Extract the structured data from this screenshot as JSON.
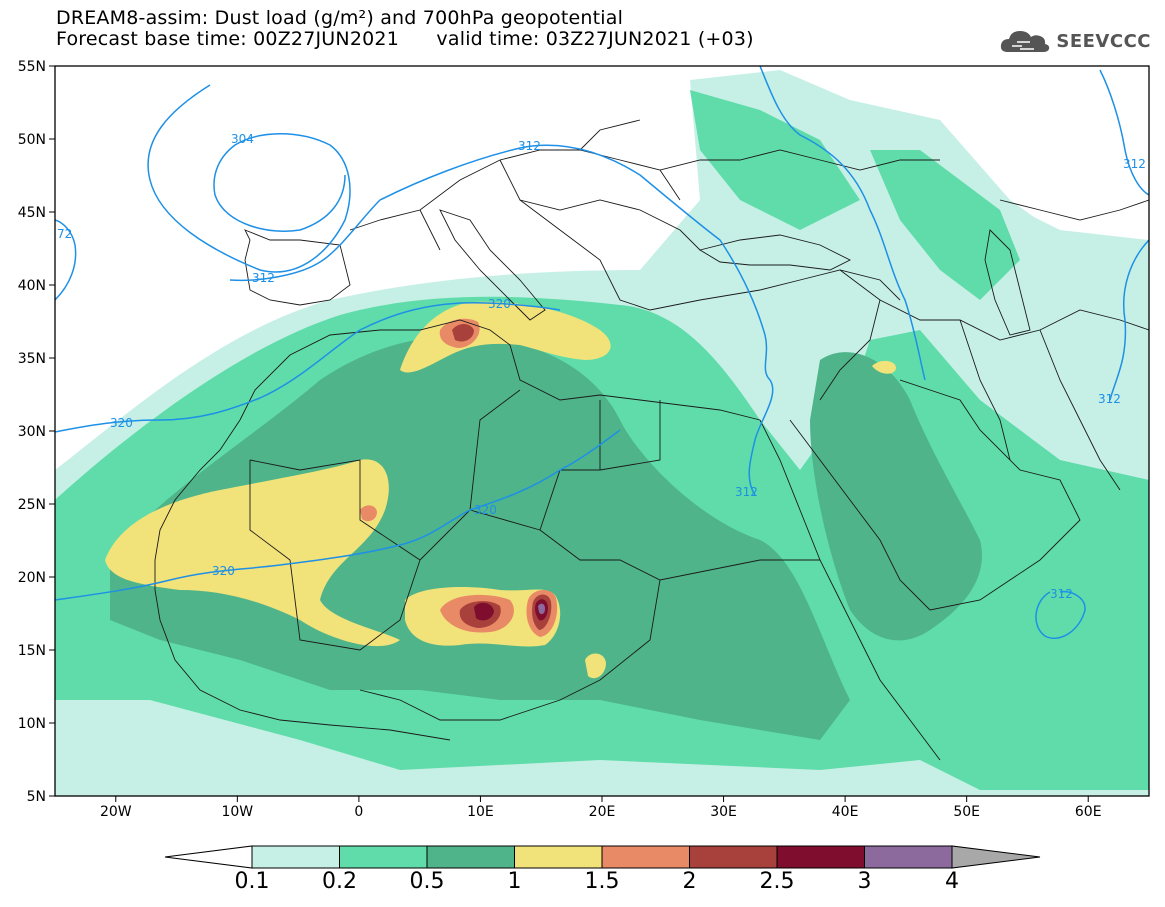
{
  "header": {
    "line1": "DREAM8-assim: Dust load (g/m²) and 700hPa geopotential",
    "base_label": "Forecast base time: 00Z27JUN2021",
    "valid_label": "valid time: 03Z27JUN2021 (+03)"
  },
  "logo": {
    "text": "SEEVCCC",
    "icon": "cloud-icon"
  },
  "map": {
    "lat_ticks": [
      "55N",
      "50N",
      "45N",
      "40N",
      "35N",
      "30N",
      "25N",
      "20N",
      "15N",
      "10N",
      "5N"
    ],
    "lon_ticks": [
      "20W",
      "10W",
      "0",
      "10E",
      "20E",
      "30E",
      "40E",
      "50E",
      "60E"
    ],
    "contour_labels": [
      "304",
      "312",
      "312",
      "312",
      "312",
      "312",
      "320",
      "320",
      "320",
      "320",
      "312",
      "72"
    ]
  },
  "colorbar": {
    "levels": [
      "0.1",
      "0.2",
      "0.5",
      "1",
      "1.5",
      "2",
      "2.5",
      "3",
      "4"
    ],
    "colors": [
      "#c6f0e6",
      "#5fdcaa",
      "#4fb48a",
      "#f2e27a",
      "#e98a66",
      "#a8403c",
      "#7e0d2e",
      "#8c6a9e",
      "#a8a8a8"
    ],
    "left_arrow_color": "#ffffff"
  }
}
